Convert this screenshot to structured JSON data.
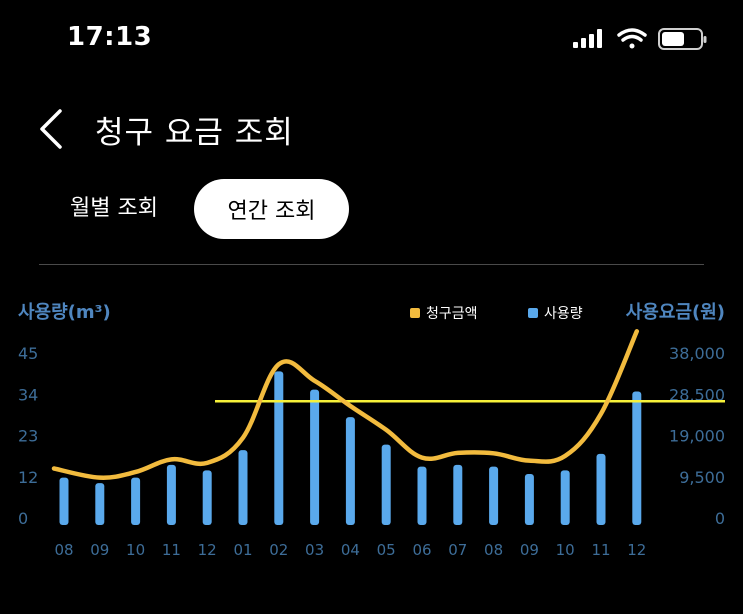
{
  "status_bar": {
    "time": "17:13",
    "icons": [
      "signal-icon",
      "wifi-icon",
      "battery-icon"
    ]
  },
  "header": {
    "title": "청구 요금 조회",
    "back_icon": "chevron-left-icon"
  },
  "tabs": {
    "monthly_label": "월별 조회",
    "annual_label": "연간 조회",
    "selected": "annual"
  },
  "colors": {
    "background": "#000000",
    "bar": "#5aa9ec",
    "line": "#f2bb3e",
    "average_line": "#f7f23a",
    "axis_text": "#3d6d98",
    "axis_title": "#4f86bf"
  },
  "chart_data": {
    "type": "bar",
    "left_axis_title": "사용량(m³)",
    "right_axis_title": "사용요금(원)",
    "legend": [
      {
        "label": "청구금액",
        "color": "#f2bb3e",
        "icon": "square-icon"
      },
      {
        "label": "사용량",
        "color": "#5aa9ec",
        "icon": "square-icon"
      }
    ],
    "legend_position": "top-right",
    "left_ticks": [
      "45",
      "34",
      "23",
      "12",
      "0"
    ],
    "right_ticks": [
      "38,000",
      "28,500",
      "19,000",
      "9,500",
      "0"
    ],
    "ylim_left": [
      0,
      45
    ],
    "ylim_right": [
      0,
      38000
    ],
    "grid": false,
    "categories": [
      "08",
      "09",
      "10",
      "11",
      "12",
      "01",
      "02",
      "03",
      "04",
      "05",
      "06",
      "07",
      "08",
      "09",
      "10",
      "11",
      "12"
    ],
    "series": [
      {
        "name": "사용량",
        "type": "bar",
        "axis": "left",
        "values": [
          11,
          9.5,
          11,
          14.5,
          13,
          18.5,
          40,
          35,
          27.5,
          20,
          14,
          14.5,
          14,
          12,
          13,
          17.5,
          34.5
        ]
      },
      {
        "name": "청구금액",
        "type": "line",
        "axis": "right",
        "values": [
          11400,
          9300,
          10600,
          13500,
          12700,
          18500,
          35400,
          31600,
          25800,
          20300,
          13900,
          15000,
          14900,
          13200,
          14300,
          24000,
          43000
        ]
      }
    ],
    "average_line": {
      "axis": "right",
      "value": 26900
    }
  }
}
